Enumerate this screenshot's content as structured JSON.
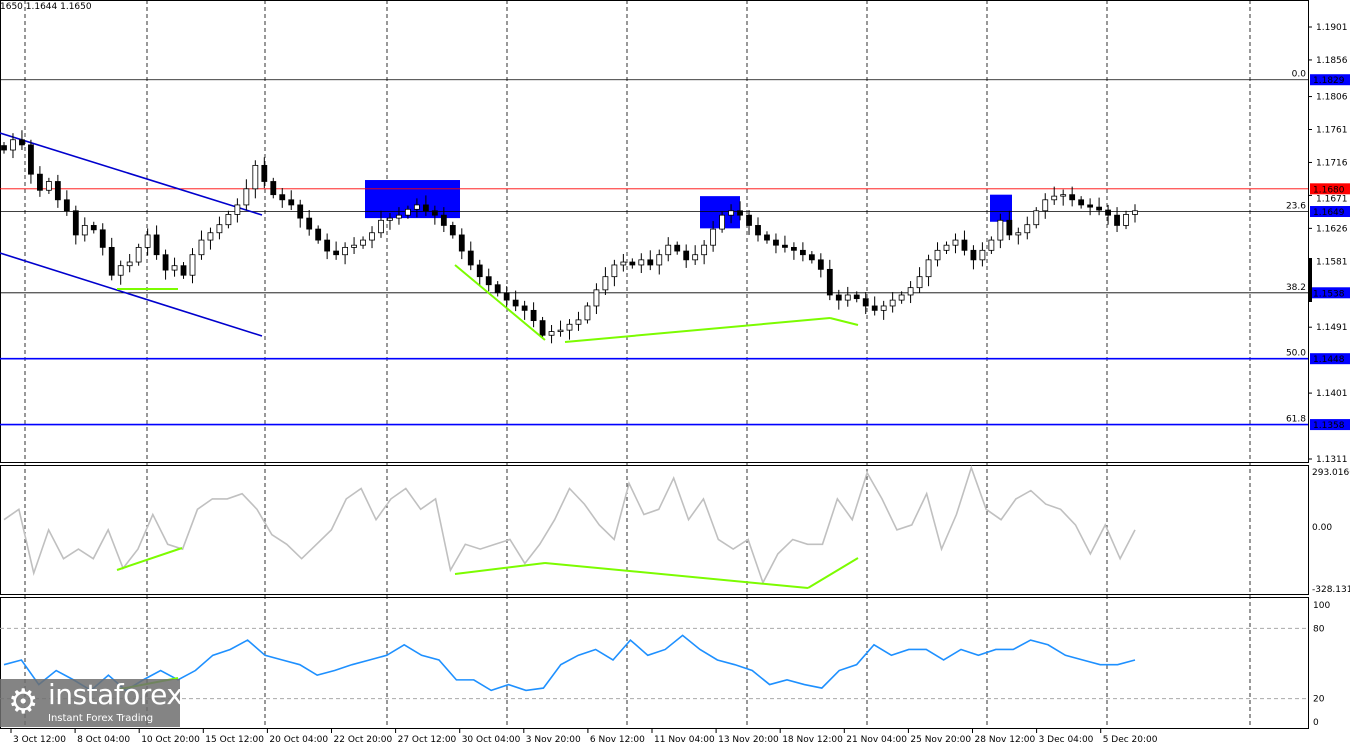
{
  "header": {
    "ohlc_text": "1650 1.1644 1.1650"
  },
  "logo": {
    "name": "instaforex",
    "tagline": "Instant Forex Trading"
  },
  "chart_data": [
    {
      "type": "candlestick",
      "panel": "price",
      "ylim": [
        1.13,
        1.1935
      ],
      "y_ticks": [
        "1.1901",
        "1.1856",
        "1.1806",
        "1.1761",
        "1.1716",
        "1.1671",
        "1.1626",
        "1.1581",
        "1.1491",
        "1.1401",
        "1.1311"
      ],
      "x_ticks": [
        "3 Oct 12:00",
        "8 Oct 04:00",
        "10 Oct 20:00",
        "15 Oct 12:00",
        "20 Oct 04:00",
        "22 Oct 20:00",
        "27 Oct 12:00",
        "30 Oct 04:00",
        "3 Nov 20:00",
        "6 Nov 12:00",
        "11 Nov 04:00",
        "13 Nov 20:00",
        "18 Nov 12:00",
        "21 Nov 04:00",
        "25 Nov 20:00",
        "28 Nov 12:00",
        "3 Dec 04:00",
        "5 Dec 20:00"
      ],
      "close": [
        1.1733,
        1.1747,
        1.174,
        1.17,
        1.1678,
        1.169,
        1.1665,
        1.165,
        1.1617,
        1.163,
        1.1624,
        1.16,
        1.1562,
        1.1575,
        1.158,
        1.16,
        1.1617,
        1.159,
        1.1569,
        1.1575,
        1.1562,
        1.159,
        1.161,
        1.162,
        1.1631,
        1.1645,
        1.1658,
        1.168,
        1.1712,
        1.169,
        1.1672,
        1.1665,
        1.1658,
        1.164,
        1.1625,
        1.161,
        1.1595,
        1.159,
        1.16,
        1.1603,
        1.161,
        1.162,
        1.1637,
        1.164,
        1.1644,
        1.1652,
        1.1658,
        1.165,
        1.1644,
        1.163,
        1.1617,
        1.1595,
        1.1576,
        1.156,
        1.1549,
        1.1538,
        1.1528,
        1.152,
        1.1514,
        1.15,
        1.148,
        1.1485,
        1.1487,
        1.1495,
        1.1501,
        1.152,
        1.1542,
        1.156,
        1.1576,
        1.158,
        1.1576,
        1.1583,
        1.1576,
        1.159,
        1.1603,
        1.1595,
        1.1583,
        1.159,
        1.1603,
        1.1625,
        1.1644,
        1.165,
        1.1644,
        1.163,
        1.1617,
        1.161,
        1.1603,
        1.16,
        1.1596,
        1.159,
        1.1583,
        1.157,
        1.1535,
        1.1528,
        1.1535,
        1.153,
        1.152,
        1.1514,
        1.152,
        1.1528,
        1.1535,
        1.1545,
        1.156,
        1.1583,
        1.1596,
        1.1603,
        1.161,
        1.1596,
        1.1583,
        1.1596,
        1.161,
        1.1637,
        1.1617,
        1.162,
        1.1631,
        1.165,
        1.1665,
        1.167,
        1.1672,
        1.1665,
        1.1658,
        1.1655,
        1.1651,
        1.1644,
        1.163,
        1.1645,
        1.165
      ],
      "levels": [
        {
          "price": 1.1829,
          "label": "1.1829",
          "fib": "0.0",
          "color": "#000000",
          "tag_color": "#0000ff"
        },
        {
          "price": 1.168,
          "label": "1.1680",
          "fib": "",
          "color": "#000000",
          "tag_color": "#ff0000"
        },
        {
          "price": 1.1649,
          "label": "1.1649",
          "fib": "23.6",
          "color": "#000000",
          "tag_color": "#0000ff"
        },
        {
          "price": 1.1538,
          "label": "1.1538",
          "fib": "38.2",
          "color": "#000000",
          "tag_color": "#0000ff"
        },
        {
          "price": 1.1448,
          "label": "1.1448",
          "fib": "50.0",
          "color": "#0000ff",
          "tag_color": "#0000ff"
        },
        {
          "price": 1.1358,
          "label": "1.1358",
          "fib": "61.8",
          "color": "#0000ff",
          "tag_color": "#0000ff"
        }
      ],
      "zones": [
        {
          "top": 1.1692,
          "bottom": 1.164
        },
        {
          "top": 1.167,
          "bottom": 1.1626
        },
        {
          "top": 1.1672,
          "bottom": 1.1635
        }
      ],
      "colors": {
        "channel": "#0000cd",
        "divergence": "#7cfc00",
        "zone": "#0000ff"
      }
    },
    {
      "type": "line",
      "panel": "oscillator",
      "ylim": [
        -328.1318,
        293.0166
      ],
      "y_ticks": [
        "293.0166",
        "0.00",
        "-328.1318"
      ],
      "color": "#c0c0c0",
      "values": [
        35,
        85,
        -240,
        -15,
        -165,
        -115,
        -165,
        -15,
        -215,
        -115,
        60,
        -90,
        -115,
        85,
        135,
        135,
        160,
        85,
        -40,
        -90,
        -165,
        -90,
        -15,
        135,
        185,
        35,
        135,
        185,
        85,
        135,
        -225,
        -90,
        -115,
        -90,
        -65,
        -190,
        -90,
        35,
        185,
        110,
        10,
        -65,
        210,
        60,
        85,
        235,
        35,
        135,
        -65,
        -115,
        -65,
        -290,
        -140,
        -65,
        -90,
        -90,
        135,
        35,
        260,
        135,
        -15,
        10,
        160,
        -115,
        60,
        285,
        85,
        35,
        135,
        175,
        110,
        85,
        10,
        -140,
        10,
        -165,
        -15
      ]
    },
    {
      "type": "line",
      "panel": "stochastic",
      "ylim": [
        0,
        100
      ],
      "y_ticks": [
        "100",
        "80",
        "20",
        "0"
      ],
      "color": "#1e90ff",
      "values": [
        49,
        53,
        32,
        44,
        36,
        27,
        40,
        27,
        36,
        44,
        36,
        44,
        57,
        62,
        70,
        57,
        53,
        49,
        40,
        44,
        49,
        53,
        57,
        66,
        57,
        53,
        36,
        36,
        27,
        32,
        27,
        29,
        49,
        57,
        62,
        53,
        70,
        57,
        62,
        74,
        62,
        53,
        49,
        44,
        32,
        36,
        32,
        29,
        44,
        49,
        66,
        57,
        62,
        62,
        53,
        62,
        57,
        62,
        62,
        70,
        66,
        57,
        53,
        49,
        49,
        53
      ]
    }
  ]
}
